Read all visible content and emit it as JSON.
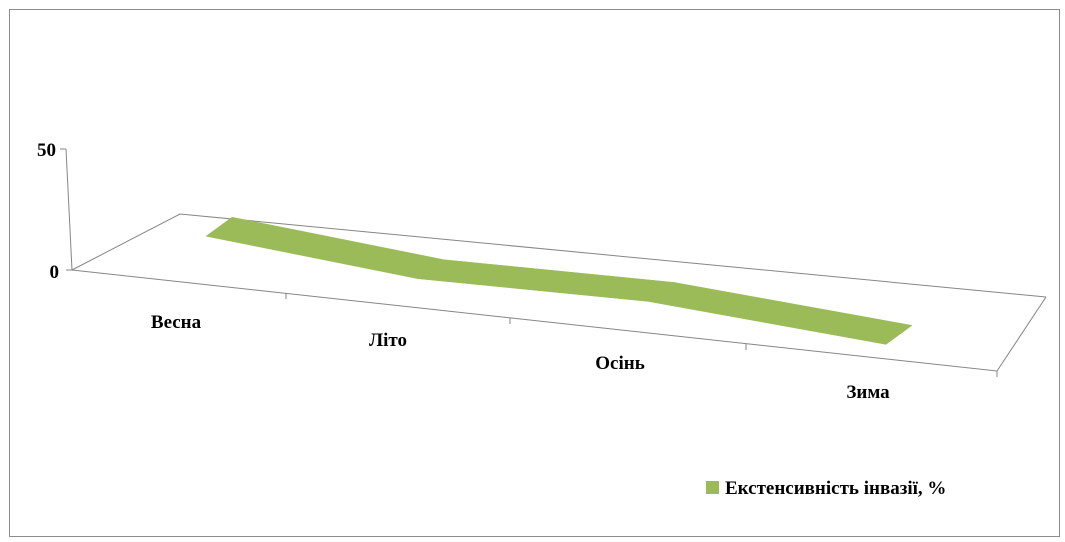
{
  "chart_data": {
    "type": "area",
    "categories": [
      "Весна",
      "Літо",
      "Осінь",
      "Зима"
    ],
    "series": [
      {
        "name": "Екстенсивність інвазії, %",
        "values": [
          20,
          12,
          13,
          6
        ]
      }
    ],
    "yticks": [
      "0",
      "50"
    ],
    "ylim": [
      0,
      50
    ],
    "grid": false,
    "legend_position": "bottom-right",
    "colors": {
      "series": "#9bbb59",
      "axis": "#868686"
    }
  }
}
